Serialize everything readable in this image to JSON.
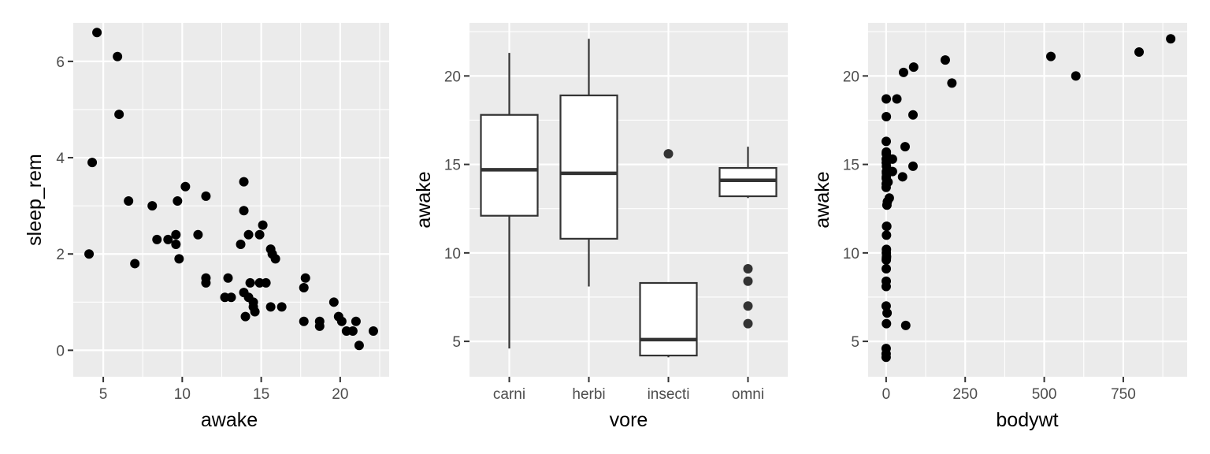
{
  "chart_data": [
    {
      "type": "scatter",
      "xlabel": "awake",
      "ylabel": "sleep_rem",
      "xlim": [
        3.1,
        23.1
      ],
      "ylim": [
        -0.55,
        6.8
      ],
      "xticks": [
        5,
        10,
        15,
        20
      ],
      "yticks": [
        0,
        2,
        4,
        6
      ],
      "grid": true,
      "points": [
        [
          4.1,
          2.0
        ],
        [
          4.3,
          3.9
        ],
        [
          4.6,
          6.6
        ],
        [
          5.9,
          6.1
        ],
        [
          6.0,
          4.9
        ],
        [
          6.6,
          3.1
        ],
        [
          7.0,
          1.8
        ],
        [
          8.1,
          3.0
        ],
        [
          8.4,
          2.3
        ],
        [
          9.1,
          2.3
        ],
        [
          9.6,
          2.4
        ],
        [
          9.6,
          2.2
        ],
        [
          9.7,
          3.1
        ],
        [
          9.8,
          1.9
        ],
        [
          10.2,
          3.4
        ],
        [
          11.0,
          2.4
        ],
        [
          11.5,
          3.2
        ],
        [
          11.5,
          1.5
        ],
        [
          11.5,
          1.4
        ],
        [
          12.7,
          1.1
        ],
        [
          12.9,
          1.5
        ],
        [
          13.1,
          1.1
        ],
        [
          13.7,
          2.2
        ],
        [
          13.9,
          3.5
        ],
        [
          13.9,
          2.9
        ],
        [
          13.9,
          1.2
        ],
        [
          14.0,
          0.7
        ],
        [
          14.2,
          2.4
        ],
        [
          14.2,
          1.1
        ],
        [
          14.3,
          1.4
        ],
        [
          14.5,
          1.0
        ],
        [
          14.5,
          0.9
        ],
        [
          14.6,
          0.8
        ],
        [
          14.9,
          2.4
        ],
        [
          14.9,
          1.4
        ],
        [
          15.1,
          2.6
        ],
        [
          15.3,
          1.4
        ],
        [
          15.6,
          2.1
        ],
        [
          15.6,
          0.9
        ],
        [
          15.7,
          2.0
        ],
        [
          15.9,
          1.9
        ],
        [
          16.3,
          0.9
        ],
        [
          17.7,
          1.3
        ],
        [
          17.8,
          1.5
        ],
        [
          17.7,
          0.6
        ],
        [
          18.7,
          0.6
        ],
        [
          18.7,
          0.5
        ],
        [
          19.6,
          1.0
        ],
        [
          19.9,
          0.7
        ],
        [
          20.1,
          0.6
        ],
        [
          20.4,
          0.4
        ],
        [
          20.8,
          0.4
        ],
        [
          21.0,
          0.6
        ],
        [
          21.2,
          0.1
        ],
        [
          22.1,
          0.4
        ]
      ]
    },
    {
      "type": "box",
      "xlabel": "vore",
      "ylabel": "awake",
      "ylim": [
        3.0,
        23.0
      ],
      "yticks": [
        5,
        10,
        15,
        20
      ],
      "categories": [
        "carni",
        "herbi",
        "insecti",
        "omni"
      ],
      "grid": true,
      "boxes": [
        {
          "category": "carni",
          "lower": 4.6,
          "q1": 12.1,
          "median": 14.7,
          "q3": 17.8,
          "upper": 21.3,
          "outliers": []
        },
        {
          "category": "herbi",
          "lower": 8.1,
          "q1": 10.8,
          "median": 14.5,
          "q3": 18.9,
          "upper": 22.1,
          "outliers": []
        },
        {
          "category": "insecti",
          "lower": 4.1,
          "q1": 4.2,
          "median": 5.1,
          "q3": 8.3,
          "upper": 8.3,
          "outliers": [
            15.6
          ]
        },
        {
          "category": "omni",
          "lower": 13.1,
          "q1": 13.2,
          "median": 14.1,
          "q3": 14.8,
          "upper": 16.0,
          "outliers": [
            9.1,
            8.4,
            7.0,
            6.0
          ]
        }
      ]
    },
    {
      "type": "scatter",
      "xlabel": "bodywt",
      "ylabel": "awake",
      "xlim": [
        -57,
        952
      ],
      "ylim": [
        3.0,
        23.0
      ],
      "xticks": [
        0,
        250,
        500,
        750
      ],
      "yticks": [
        5,
        10,
        15,
        20
      ],
      "grid": true,
      "points": [
        [
          0.01,
          4.1
        ],
        [
          0.02,
          4.3
        ],
        [
          0.05,
          4.6
        ],
        [
          1.0,
          6.0
        ],
        [
          3.0,
          6.6
        ],
        [
          0.1,
          7.0
        ],
        [
          0.2,
          8.1
        ],
        [
          0.3,
          8.4
        ],
        [
          0.4,
          9.1
        ],
        [
          0.5,
          9.6
        ],
        [
          0.8,
          9.7
        ],
        [
          1.2,
          9.8
        ],
        [
          0.7,
          10.0
        ],
        [
          0.9,
          10.2
        ],
        [
          1.1,
          11.0
        ],
        [
          1.5,
          11.5
        ],
        [
          2.0,
          11.5
        ],
        [
          2.5,
          12.7
        ],
        [
          4.0,
          12.9
        ],
        [
          10.0,
          13.1
        ],
        [
          0.1,
          13.7
        ],
        [
          0.3,
          13.9
        ],
        [
          6.0,
          14.0
        ],
        [
          0.5,
          14.2
        ],
        [
          0.6,
          14.3
        ],
        [
          1.0,
          14.5
        ],
        [
          0.8,
          14.6
        ],
        [
          20.0,
          14.6
        ],
        [
          0.9,
          14.9
        ],
        [
          0.4,
          15.1
        ],
        [
          0.2,
          15.3
        ],
        [
          20.0,
          15.3
        ],
        [
          0.5,
          15.6
        ],
        [
          0.7,
          15.7
        ],
        [
          0.3,
          16.3
        ],
        [
          0.6,
          17.7
        ],
        [
          0.4,
          18.7
        ],
        [
          34.0,
          18.7
        ],
        [
          52.0,
          14.3
        ],
        [
          60.0,
          16.0
        ],
        [
          85.0,
          14.9
        ],
        [
          85.0,
          17.8
        ],
        [
          55.0,
          20.2
        ],
        [
          87.0,
          20.5
        ],
        [
          62.0,
          5.9
        ],
        [
          187.0,
          20.9
        ],
        [
          208.0,
          19.6
        ],
        [
          521.0,
          21.1
        ],
        [
          600.0,
          20.0
        ],
        [
          800.0,
          21.35
        ],
        [
          900.0,
          22.1
        ]
      ]
    }
  ]
}
